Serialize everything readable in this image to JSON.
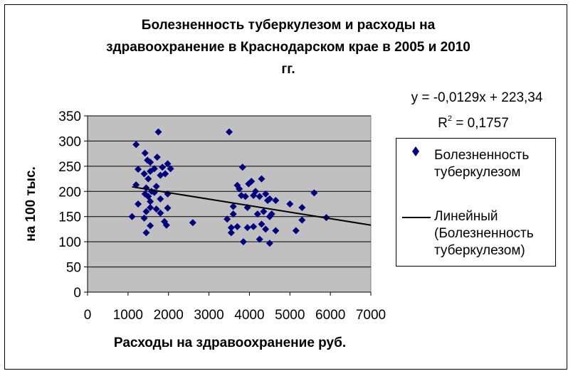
{
  "chart_data": {
    "type": "scatter",
    "title": "Болезненность туберкулезом и расходы на здравоохранение в Краснодарском крае в 2005 и 2010 гг.",
    "title_lines": [
      "Болезненность туберкулезом и расходы на",
      "здравоохранение в Краснодарском крае в 2005 и 2010",
      "гг."
    ],
    "xlabel": "Расходы на здравоохранение руб.",
    "ylabel": "на 100 тыс.",
    "xlim": [
      0,
      7000
    ],
    "ylim": [
      0,
      350
    ],
    "x_ticks": [
      "0",
      "1000",
      "2000",
      "3000",
      "4000",
      "5000",
      "6000",
      "7000"
    ],
    "y_ticks": [
      "0",
      "50",
      "100",
      "150",
      "200",
      "250",
      "300",
      "350"
    ],
    "grid": true,
    "legend_position": "right",
    "equation": "y = -0,0129x + 223,34",
    "r2_label": "R",
    "r2_exp": "2",
    "r2_value": " = 0,1757",
    "series": [
      {
        "name": "Болезненность туберкулезом",
        "name_lines": [
          "Болезненность",
          "туберкулезом"
        ],
        "color": "#000080",
        "marker": "diamond",
        "points": [
          [
            1750,
            318
          ],
          [
            1200,
            293
          ],
          [
            1420,
            276
          ],
          [
            1720,
            268
          ],
          [
            1480,
            262
          ],
          [
            1550,
            258
          ],
          [
            1650,
            245
          ],
          [
            1250,
            244
          ],
          [
            1550,
            240
          ],
          [
            1980,
            255
          ],
          [
            2050,
            245
          ],
          [
            1850,
            248
          ],
          [
            1400,
            235
          ],
          [
            1800,
            232
          ],
          [
            1500,
            225
          ],
          [
            1920,
            235
          ],
          [
            1200,
            213
          ],
          [
            1450,
            207
          ],
          [
            1700,
            210
          ],
          [
            1580,
            200
          ],
          [
            1980,
            195
          ],
          [
            1420,
            195
          ],
          [
            1650,
            198
          ],
          [
            1500,
            190
          ],
          [
            1800,
            185
          ],
          [
            1550,
            180
          ],
          [
            1250,
            175
          ],
          [
            1550,
            168
          ],
          [
            1980,
            167
          ],
          [
            1700,
            165
          ],
          [
            1450,
            160
          ],
          [
            1800,
            157
          ],
          [
            1100,
            150
          ],
          [
            1400,
            147
          ],
          [
            1900,
            140
          ],
          [
            1950,
            133
          ],
          [
            1550,
            132
          ],
          [
            1450,
            118
          ],
          [
            2600,
            138
          ],
          [
            3500,
            318
          ],
          [
            3830,
            248
          ],
          [
            4050,
            220
          ],
          [
            3980,
            215
          ],
          [
            4300,
            225
          ],
          [
            3700,
            212
          ],
          [
            3750,
            205
          ],
          [
            4150,
            200
          ],
          [
            4400,
            195
          ],
          [
            3800,
            192
          ],
          [
            3900,
            190
          ],
          [
            4100,
            192
          ],
          [
            4250,
            190
          ],
          [
            4500,
            185
          ],
          [
            4650,
            182
          ],
          [
            4450,
            182
          ],
          [
            3600,
            170
          ],
          [
            3950,
            168
          ],
          [
            4350,
            160
          ],
          [
            4550,
            155
          ],
          [
            3600,
            155
          ],
          [
            4200,
            155
          ],
          [
            4500,
            150
          ],
          [
            3450,
            145
          ],
          [
            3700,
            130
          ],
          [
            3950,
            128
          ],
          [
            4100,
            130
          ],
          [
            4300,
            135
          ],
          [
            4400,
            125
          ],
          [
            4650,
            122
          ],
          [
            3550,
            128
          ],
          [
            3550,
            118
          ],
          [
            4250,
            105
          ],
          [
            3850,
            100
          ],
          [
            4500,
            97
          ],
          [
            5000,
            175
          ],
          [
            5300,
            168
          ],
          [
            5600,
            197
          ],
          [
            5300,
            143
          ],
          [
            5150,
            122
          ],
          [
            5900,
            148
          ]
        ]
      },
      {
        "name": "Линейный (Болезненность туберкулезом)",
        "name_lines": [
          "Линейный",
          "(Болезненность",
          "туберкулезом)"
        ],
        "color": "#000000",
        "type": "line",
        "slope": -0.0129,
        "intercept": 223.34,
        "x_range": [
          1100,
          7000
        ]
      }
    ]
  }
}
